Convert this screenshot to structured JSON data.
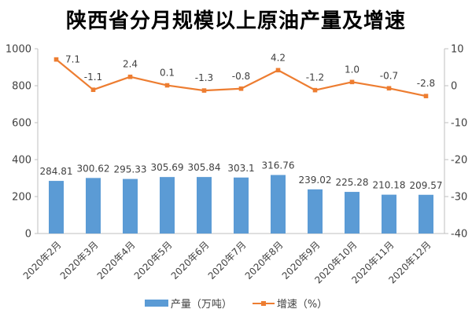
{
  "title": "陕西省分月规模以上原油产量及增速",
  "legend": {
    "bar_label": "产量（万吨）",
    "line_label": "增速（%）"
  },
  "colors": {
    "bar": "#5B9BD5",
    "line": "#ED7D31",
    "axis_line": "#BFBFBF",
    "tick_text": "#404040",
    "data_label_text": "#404040",
    "background": "#FFFFFF"
  },
  "chart_data": {
    "type": "combo-bar-line",
    "title": "陕西省分月规模以上原油产量及增速",
    "categories": [
      "2020年2月",
      "2020年3月",
      "2020年4月",
      "2020年5月",
      "2020年6月",
      "2020年7月",
      "2020年8月",
      "2020年9月",
      "2020年10月",
      "2020年11月",
      "2020年12月"
    ],
    "series": [
      {
        "name": "产量（万吨）",
        "type": "bar",
        "axis": "left",
        "color": "#5B9BD5",
        "values": [
          284.81,
          300.62,
          295.33,
          305.69,
          305.84,
          303.1,
          316.76,
          239.02,
          225.28,
          210.18,
          209.57
        ],
        "labels": [
          "284.81",
          "300.62",
          "295.33",
          "305.69",
          "305.84",
          "303.1",
          "316.76",
          "239.02",
          "225.28",
          "210.18",
          "209.57"
        ]
      },
      {
        "name": "增速（%）",
        "type": "line",
        "axis": "right",
        "color": "#ED7D31",
        "values": [
          7.1,
          -1.1,
          2.4,
          0.1,
          -1.3,
          -0.8,
          4.2,
          -1.2,
          1.0,
          -0.7,
          -2.8
        ],
        "labels": [
          "7.1",
          "-1.1",
          "2.4",
          "0.1",
          "-1.3",
          "-0.8",
          "4.2",
          "-1.2",
          "1.0",
          "-0.7",
          "-2.8"
        ]
      }
    ],
    "left_axis": {
      "min": 0,
      "max": 1000,
      "step": 200,
      "ticks": [
        0,
        200,
        400,
        600,
        800,
        1000
      ]
    },
    "right_axis": {
      "min": -40,
      "max": 10,
      "step": 10,
      "ticks": [
        -40,
        -30,
        -20,
        -10,
        0,
        10
      ]
    },
    "grid": false,
    "legend_position": "bottom",
    "data_labels": true
  }
}
